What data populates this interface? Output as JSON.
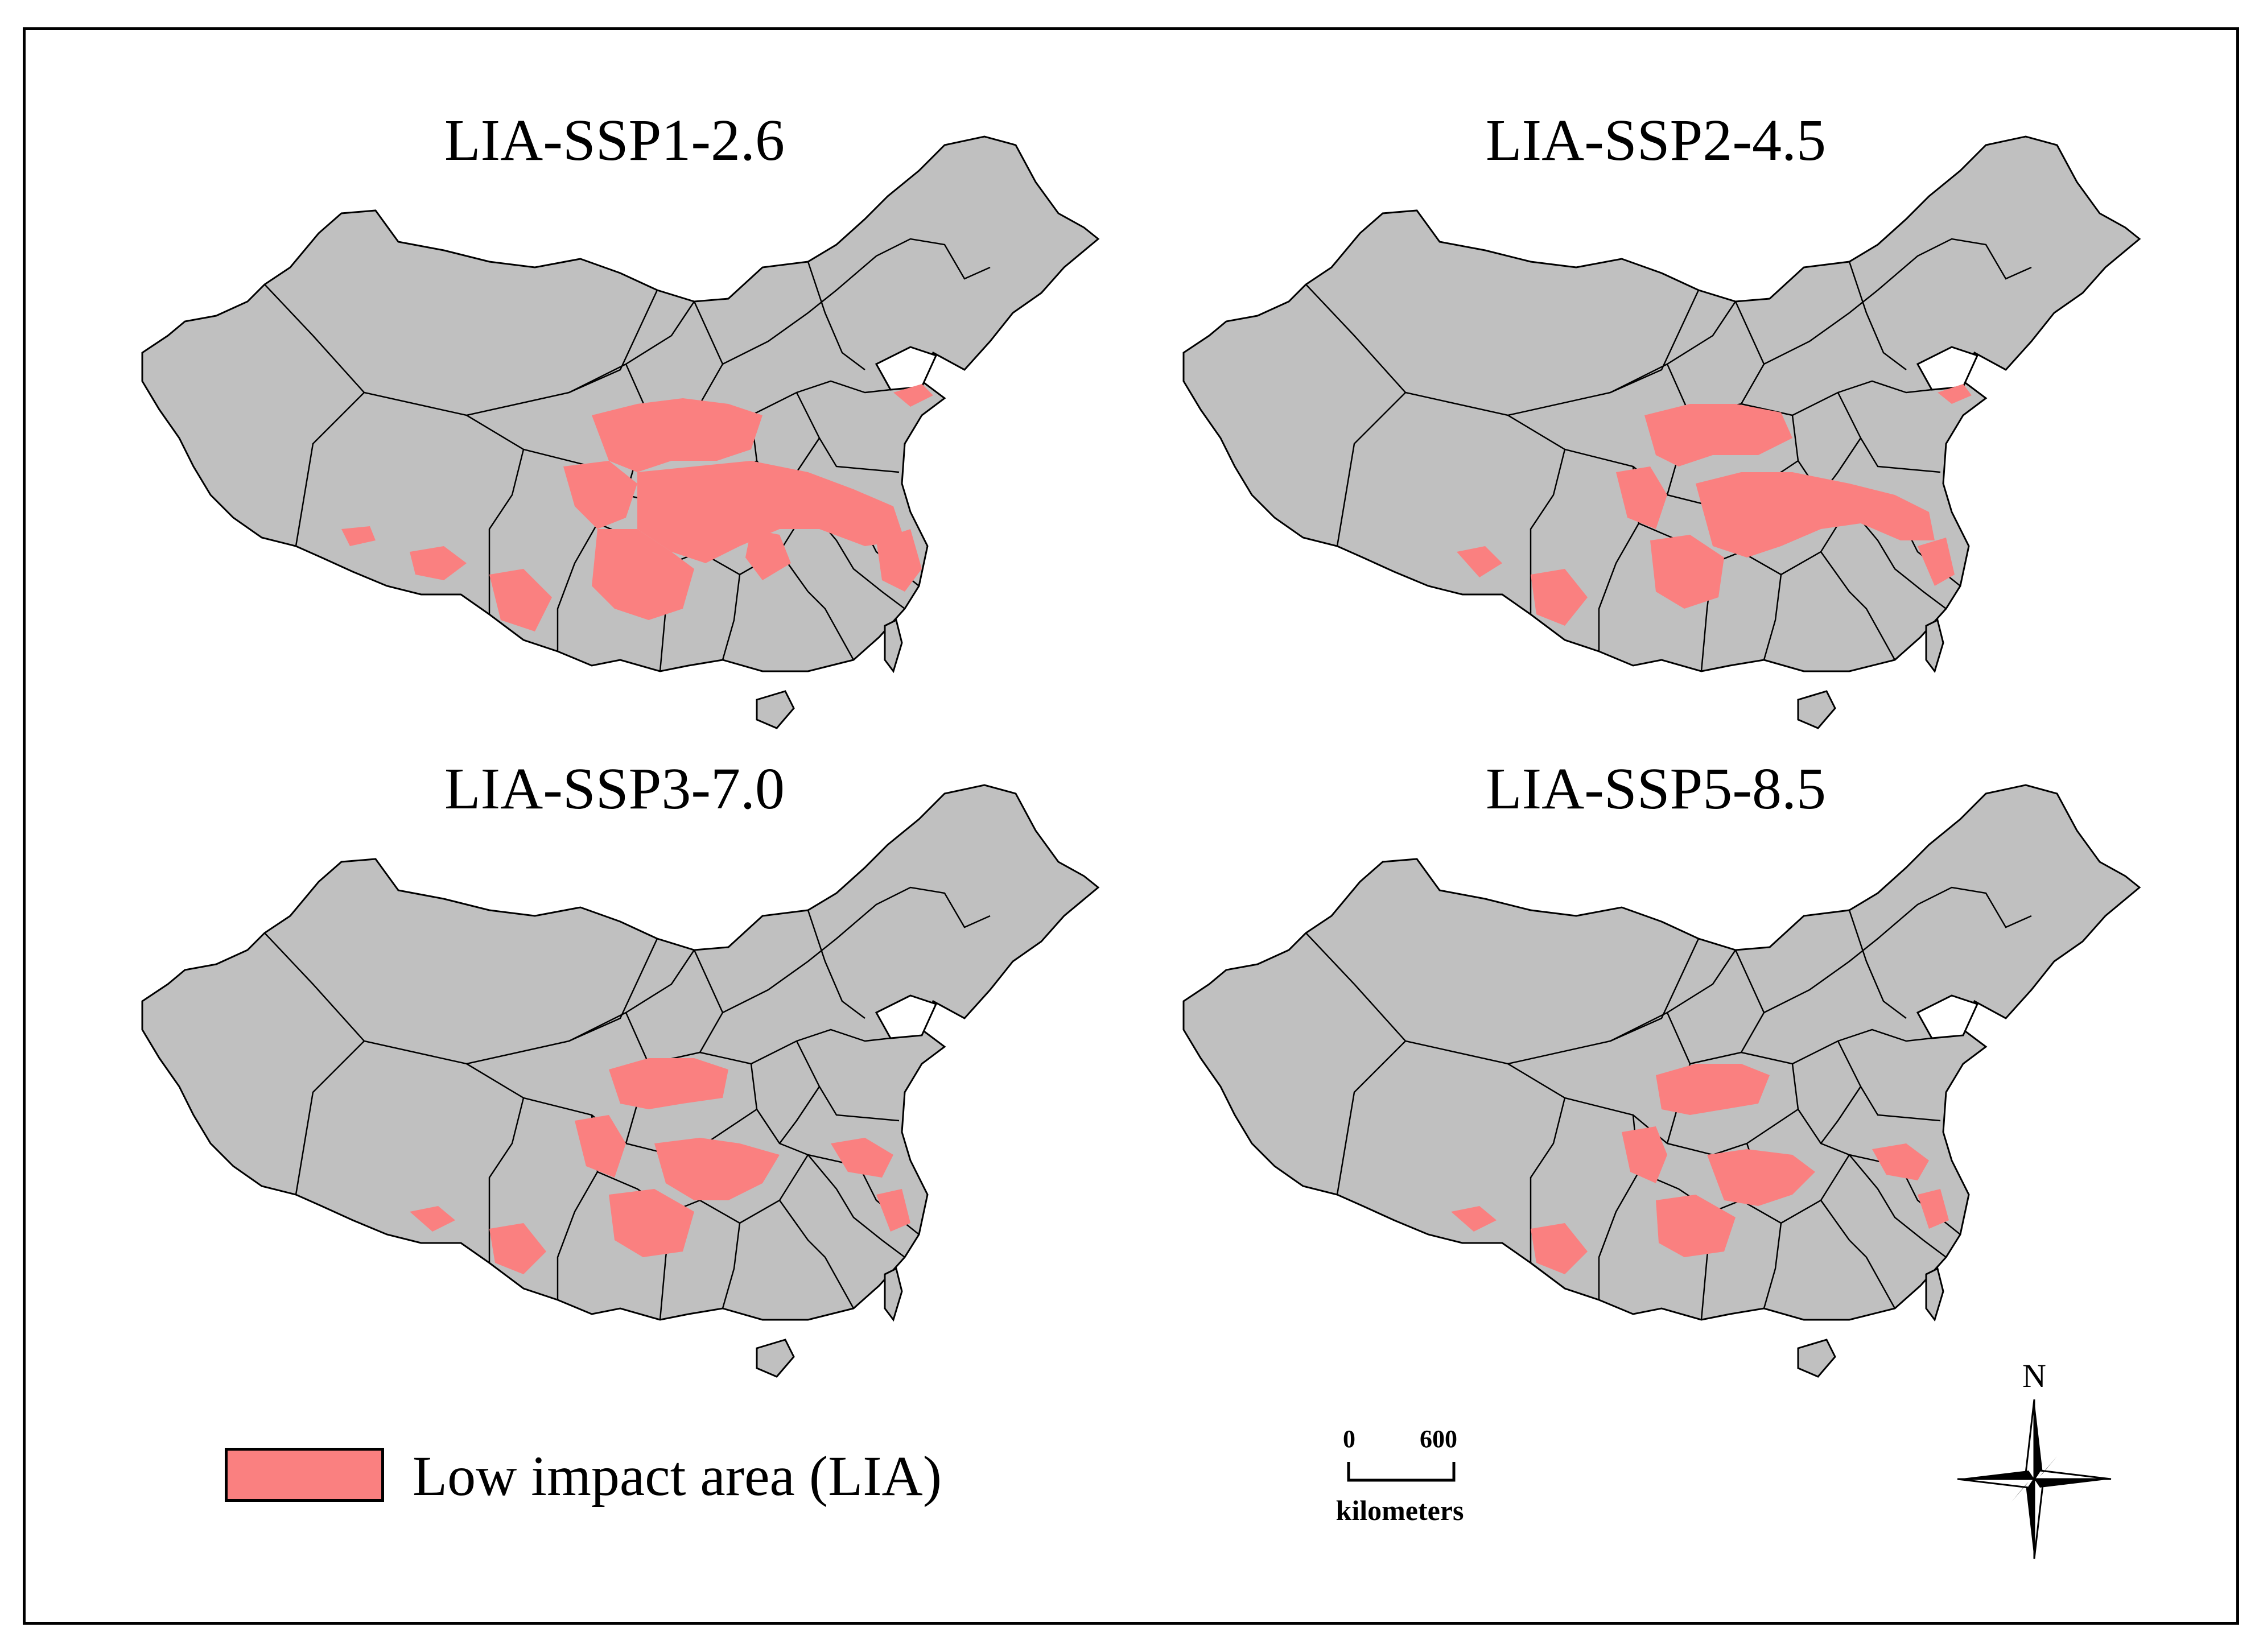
{
  "figure": {
    "panels": [
      {
        "title": "LIA-SSP1-2.6"
      },
      {
        "title": "LIA-SSP2-4.5"
      },
      {
        "title": "LIA-SSP3-7.0"
      },
      {
        "title": "LIA-SSP5-8.5"
      }
    ],
    "legend": {
      "label": "Low impact area (LIA)",
      "swatch_color": "#fa8080"
    },
    "scale_bar": {
      "start": "0",
      "end": "600",
      "unit": "kilometers"
    },
    "north_arrow": {
      "letter": "N"
    },
    "colors": {
      "land": "#c0c0c0",
      "lia": "#fa8080",
      "border": "#000000"
    }
  }
}
